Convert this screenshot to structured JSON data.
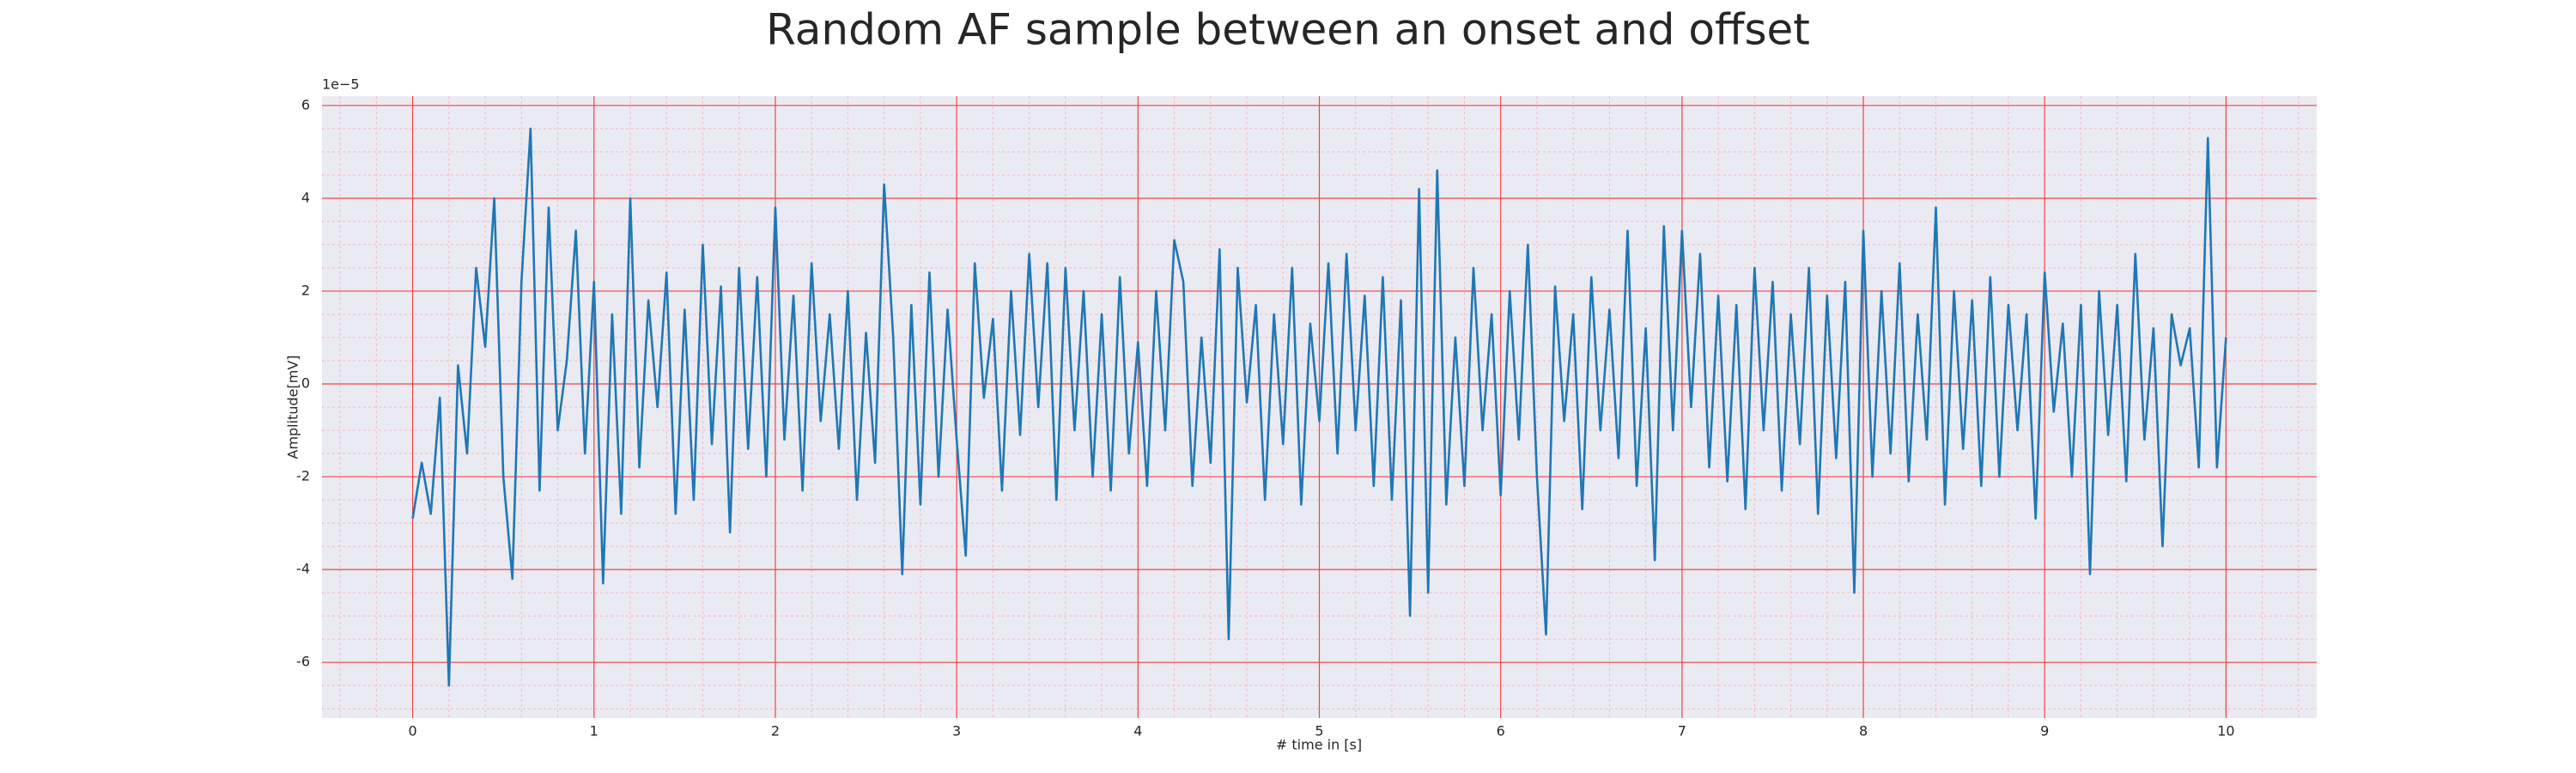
{
  "chart_data": {
    "type": "line",
    "title": "Random AF sample between an onset and offset",
    "xlabel": "# time in [s]",
    "ylabel": "Amplitude[mV]",
    "y_offset_label": "1e−5",
    "color": "#1f77b4",
    "grid": true,
    "xlim": [
      -0.5,
      10.5
    ],
    "ylim": [
      -7.2,
      6.2
    ],
    "xticks": [
      0,
      1,
      2,
      3,
      4,
      5,
      6,
      7,
      8,
      9,
      10
    ],
    "yticks": [
      -6,
      -4,
      -2,
      0,
      2,
      4,
      6
    ],
    "xminorticks": [
      -0.4,
      -0.2,
      0.2,
      0.4,
      0.6,
      0.8,
      1.2,
      1.4,
      1.6,
      1.8,
      2.2,
      2.4,
      2.6,
      2.8,
      3.2,
      3.4,
      3.6,
      3.8,
      4.2,
      4.4,
      4.6,
      4.8,
      5.2,
      5.4,
      5.6,
      5.8,
      6.2,
      6.4,
      6.6,
      6.8,
      7.2,
      7.4,
      7.6,
      7.8,
      8.2,
      8.4,
      8.6,
      8.8,
      9.2,
      9.4,
      9.6,
      9.8,
      10.2,
      10.4
    ],
    "yminorticks": [
      -7,
      -6.5,
      -5.5,
      -5,
      -4.5,
      -3.5,
      -3,
      -2.5,
      -1.5,
      -1,
      -0.5,
      0.5,
      1,
      1.5,
      2.5,
      3,
      3.5,
      4.5,
      5,
      5.5
    ],
    "x": [
      0,
      0.05,
      0.1,
      0.15,
      0.2,
      0.25,
      0.3,
      0.35,
      0.4,
      0.45,
      0.5,
      0.55,
      0.6,
      0.65,
      0.7,
      0.75,
      0.8,
      0.85,
      0.9,
      0.95,
      1,
      1.05,
      1.1,
      1.15,
      1.2,
      1.25,
      1.3,
      1.35,
      1.4,
      1.45,
      1.5,
      1.55,
      1.6,
      1.65,
      1.7,
      1.75,
      1.8,
      1.85,
      1.9,
      1.95,
      2,
      2.05,
      2.1,
      2.15,
      2.2,
      2.25,
      2.3,
      2.35,
      2.4,
      2.45,
      2.5,
      2.55,
      2.6,
      2.65,
      2.7,
      2.75,
      2.8,
      2.85,
      2.9,
      2.95,
      3,
      3.05,
      3.1,
      3.15,
      3.2,
      3.25,
      3.3,
      3.35,
      3.4,
      3.45,
      3.5,
      3.55,
      3.6,
      3.65,
      3.7,
      3.75,
      3.8,
      3.85,
      3.9,
      3.95,
      4,
      4.05,
      4.1,
      4.15,
      4.2,
      4.25,
      4.3,
      4.35,
      4.4,
      4.45,
      4.5,
      4.55,
      4.6,
      4.65,
      4.7,
      4.75,
      4.8,
      4.85,
      4.9,
      4.95,
      5,
      5.05,
      5.1,
      5.15,
      5.2,
      5.25,
      5.3,
      5.35,
      5.4,
      5.45,
      5.5,
      5.55,
      5.6,
      5.65,
      5.7,
      5.75,
      5.8,
      5.85,
      5.9,
      5.95,
      6,
      6.05,
      6.1,
      6.15,
      6.2,
      6.25,
      6.3,
      6.35,
      6.4,
      6.45,
      6.5,
      6.55,
      6.6,
      6.65,
      6.7,
      6.75,
      6.8,
      6.85,
      6.9,
      6.95,
      7,
      7.05,
      7.1,
      7.15,
      7.2,
      7.25,
      7.3,
      7.35,
      7.4,
      7.45,
      7.5,
      7.55,
      7.6,
      7.65,
      7.7,
      7.75,
      7.8,
      7.85,
      7.9,
      7.95,
      8,
      8.05,
      8.1,
      8.15,
      8.2,
      8.25,
      8.3,
      8.35,
      8.4,
      8.45,
      8.5,
      8.55,
      8.6,
      8.65,
      8.7,
      8.75,
      8.8,
      8.85,
      8.9,
      8.95,
      9,
      9.05,
      9.1,
      9.15,
      9.2,
      9.25,
      9.3,
      9.35,
      9.4,
      9.45,
      9.5,
      9.55,
      9.6,
      9.65,
      9.7,
      9.75,
      9.8,
      9.85,
      9.9,
      9.95,
      10
    ],
    "values": [
      -2.9,
      -1.7,
      -2.8,
      -0.3,
      -6.5,
      0.4,
      -1.5,
      2.5,
      0.8,
      4.0,
      -2.0,
      -4.2,
      2.2,
      5.5,
      -2.3,
      3.8,
      -1.0,
      0.5,
      3.3,
      -1.5,
      2.2,
      -4.3,
      1.5,
      -2.8,
      4.0,
      -1.8,
      1.8,
      -0.5,
      2.4,
      -2.8,
      1.6,
      -2.5,
      3.0,
      -1.3,
      2.1,
      -3.2,
      2.5,
      -1.4,
      2.3,
      -2.0,
      3.8,
      -1.2,
      1.9,
      -2.3,
      2.6,
      -0.8,
      1.5,
      -1.4,
      2.0,
      -2.5,
      1.1,
      -1.7,
      4.3,
      1.0,
      -4.1,
      1.7,
      -2.6,
      2.4,
      -2.0,
      1.6,
      -1.2,
      -3.7,
      2.6,
      -0.3,
      1.4,
      -2.3,
      2.0,
      -1.1,
      2.8,
      -0.5,
      2.6,
      -2.5,
      2.5,
      -1.0,
      2.0,
      -2.0,
      1.5,
      -2.3,
      2.3,
      -1.5,
      0.9,
      -2.2,
      2.0,
      -1.0,
      3.1,
      2.2,
      -2.2,
      1.0,
      -1.7,
      2.9,
      -5.5,
      2.5,
      -0.4,
      1.7,
      -2.5,
      1.5,
      -1.3,
      2.5,
      -2.6,
      1.3,
      -0.8,
      2.6,
      -1.5,
      2.8,
      -1.0,
      1.9,
      -2.2,
      2.3,
      -2.5,
      1.8,
      -5.0,
      4.2,
      -4.5,
      4.6,
      -2.6,
      1.0,
      -2.2,
      2.5,
      -1.0,
      1.5,
      -2.4,
      2.0,
      -1.2,
      3.0,
      -2.0,
      -5.4,
      2.1,
      -0.8,
      1.5,
      -2.7,
      2.3,
      -1.0,
      1.6,
      -1.6,
      3.3,
      -2.2,
      1.2,
      -3.8,
      3.4,
      -1.0,
      3.3,
      -0.5,
      2.8,
      -1.8,
      1.9,
      -2.1,
      1.7,
      -2.7,
      2.5,
      -1.0,
      2.2,
      -2.3,
      1.5,
      -1.3,
      2.5,
      -2.8,
      1.9,
      -1.6,
      2.2,
      -4.5,
      3.3,
      -2.0,
      2.0,
      -1.5,
      2.6,
      -2.1,
      1.5,
      -1.2,
      3.8,
      -2.6,
      2.0,
      -1.4,
      1.8,
      -2.2,
      2.3,
      -2.0,
      1.7,
      -1.0,
      1.5,
      -2.9,
      2.4,
      -0.6,
      1.3,
      -2.0,
      1.7,
      -4.1,
      2.0,
      -1.1,
      1.7,
      -2.1,
      2.8,
      -1.2,
      1.2,
      -3.5,
      1.5,
      0.4,
      1.2,
      -1.8,
      5.3,
      -1.8,
      1.0
    ]
  }
}
